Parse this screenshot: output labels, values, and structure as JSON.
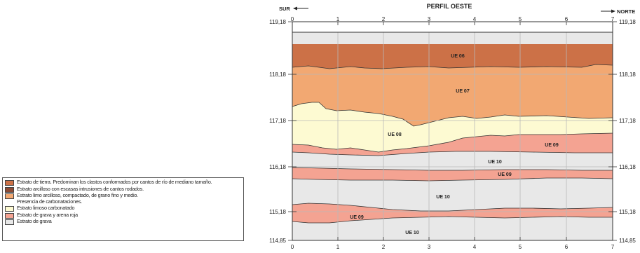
{
  "title": "PERFIL OESTE",
  "dir_left": "SUR",
  "dir_right": "NORTE",
  "top_ticks": [
    "0",
    "1",
    "2",
    "3",
    "4",
    "5",
    "6",
    "7"
  ],
  "bottom_ticks": [
    "0",
    "1",
    "2",
    "3",
    "4",
    "5",
    "6",
    "7"
  ],
  "elevations": [
    "119,18",
    "118,18",
    "117,18",
    "116,18",
    "115,18",
    "114,85"
  ],
  "units": [
    {
      "label": "UE 06"
    },
    {
      "label": "UE 07"
    },
    {
      "label": "UE 08"
    },
    {
      "label": "UE 09"
    },
    {
      "label": "UE 10"
    },
    {
      "label": "UE 09"
    },
    {
      "label": "UE 10"
    },
    {
      "label": "UE 09"
    },
    {
      "label": "UE 10"
    }
  ],
  "colors": {
    "topsoil": "#cc7147",
    "clay": "#8c4a34",
    "silt": "#f2a872",
    "carbonate": "#fdfad2",
    "gravel_red": "#f4a392",
    "gravel": "#e8e8e8",
    "grid": "#b8b8b8"
  },
  "legend": [
    {
      "color": "#cc7147",
      "text": "Estrato de tierra. Predominan los clastos conformados por cantos de río de mediano tamaño."
    },
    {
      "color": "#8c4a34",
      "text": "Estrato arcilloso con escasas intrusiones de cantos rodados."
    },
    {
      "color": "#f2a872",
      "text": "Estrato limo arcilloso, compactado, de grano fino y medio.\nPresencia de carbonataciones."
    },
    {
      "color": "#fdfad2",
      "text": "Estrato limoso carbonatado"
    },
    {
      "color": "#f4a392",
      "text": "Estrato de grava y arena roja"
    },
    {
      "color": "#e8e8e8",
      "text": "Estrato de grava"
    }
  ]
}
